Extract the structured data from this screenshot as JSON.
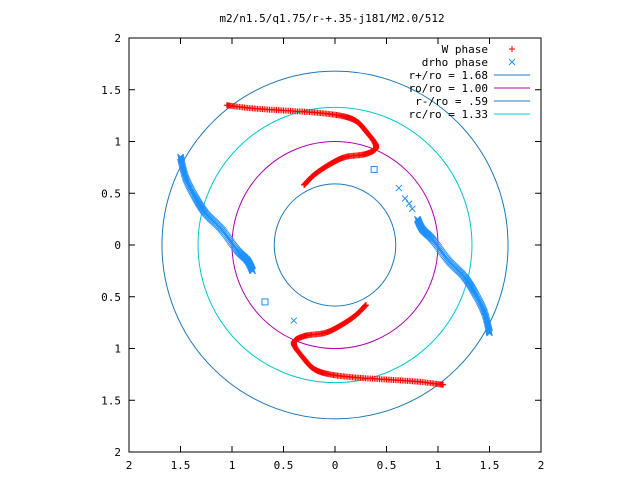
{
  "chart_data": {
    "type": "scatter",
    "title": "m2/n1.5/q1.75/r-+.35-j181/M2.0/512",
    "xlim": [
      -2,
      2
    ],
    "ylim": [
      -2,
      2
    ],
    "x_ticks": [
      "2",
      "1.5",
      "1",
      "0.5",
      "0",
      "0.5",
      "1",
      "1.5",
      "2"
    ],
    "y_ticks": [
      "2",
      "1.5",
      "1",
      "0.5",
      "0",
      "0.5",
      "1",
      "1.5",
      "2"
    ],
    "grid": false,
    "legend_position": "top-right",
    "legend": [
      {
        "label": "W phase",
        "marker": "+",
        "color": "#ff0000"
      },
      {
        "label": "drho phase",
        "marker": "x",
        "color": "#1e90ff"
      },
      {
        "label": "r+/ro = 1.68",
        "marker": "line",
        "color": "#1f78b4"
      },
      {
        "label": "ro/ro = 1.00",
        "marker": "line",
        "color": "#b000b0"
      },
      {
        "label": "r-/ro = .59",
        "marker": "line",
        "color": "#1f78b4"
      },
      {
        "label": "rc/ro = 1.33",
        "marker": "line",
        "color": "#00c8d0"
      }
    ],
    "circles": [
      {
        "name": "r+/ro",
        "radius": 1.68,
        "color": "#1f78b4"
      },
      {
        "name": "ro/ro",
        "radius": 1.0,
        "color": "#b000b0"
      },
      {
        "name": "r-/ro",
        "radius": 0.59,
        "color": "#1f78b4"
      },
      {
        "name": "rc/ro",
        "radius": 1.33,
        "color": "#00c8d0"
      }
    ],
    "series": [
      {
        "name": "W phase",
        "color": "#ff0000",
        "arm_points": [
          [
            -1.05,
            1.35
          ],
          [
            -0.8,
            1.32
          ],
          [
            -0.5,
            1.3
          ],
          [
            -0.2,
            1.28
          ],
          [
            0.05,
            1.25
          ],
          [
            0.2,
            1.2
          ],
          [
            0.3,
            1.1
          ],
          [
            0.4,
            0.95
          ],
          [
            0.3,
            0.88
          ],
          [
            0.1,
            0.85
          ],
          [
            -0.05,
            0.78
          ],
          [
            -0.2,
            0.68
          ],
          [
            -0.3,
            0.58
          ]
        ]
      },
      {
        "name": "drho phase",
        "color": "#1e90ff",
        "arm_points": [
          [
            -1.5,
            0.85
          ],
          [
            -1.45,
            0.65
          ],
          [
            -1.35,
            0.45
          ],
          [
            -1.25,
            0.3
          ],
          [
            -1.1,
            0.15
          ],
          [
            -0.95,
            -0.05
          ],
          [
            -0.85,
            -0.15
          ],
          [
            -0.8,
            -0.25
          ]
        ],
        "scattered_points": [
          [
            0.38,
            0.73
          ],
          [
            0.62,
            0.55
          ],
          [
            0.68,
            0.45
          ],
          [
            0.72,
            0.4
          ],
          [
            0.75,
            0.35
          ],
          [
            -0.68,
            -0.55
          ],
          [
            -0.4,
            -0.73
          ]
        ]
      }
    ]
  }
}
